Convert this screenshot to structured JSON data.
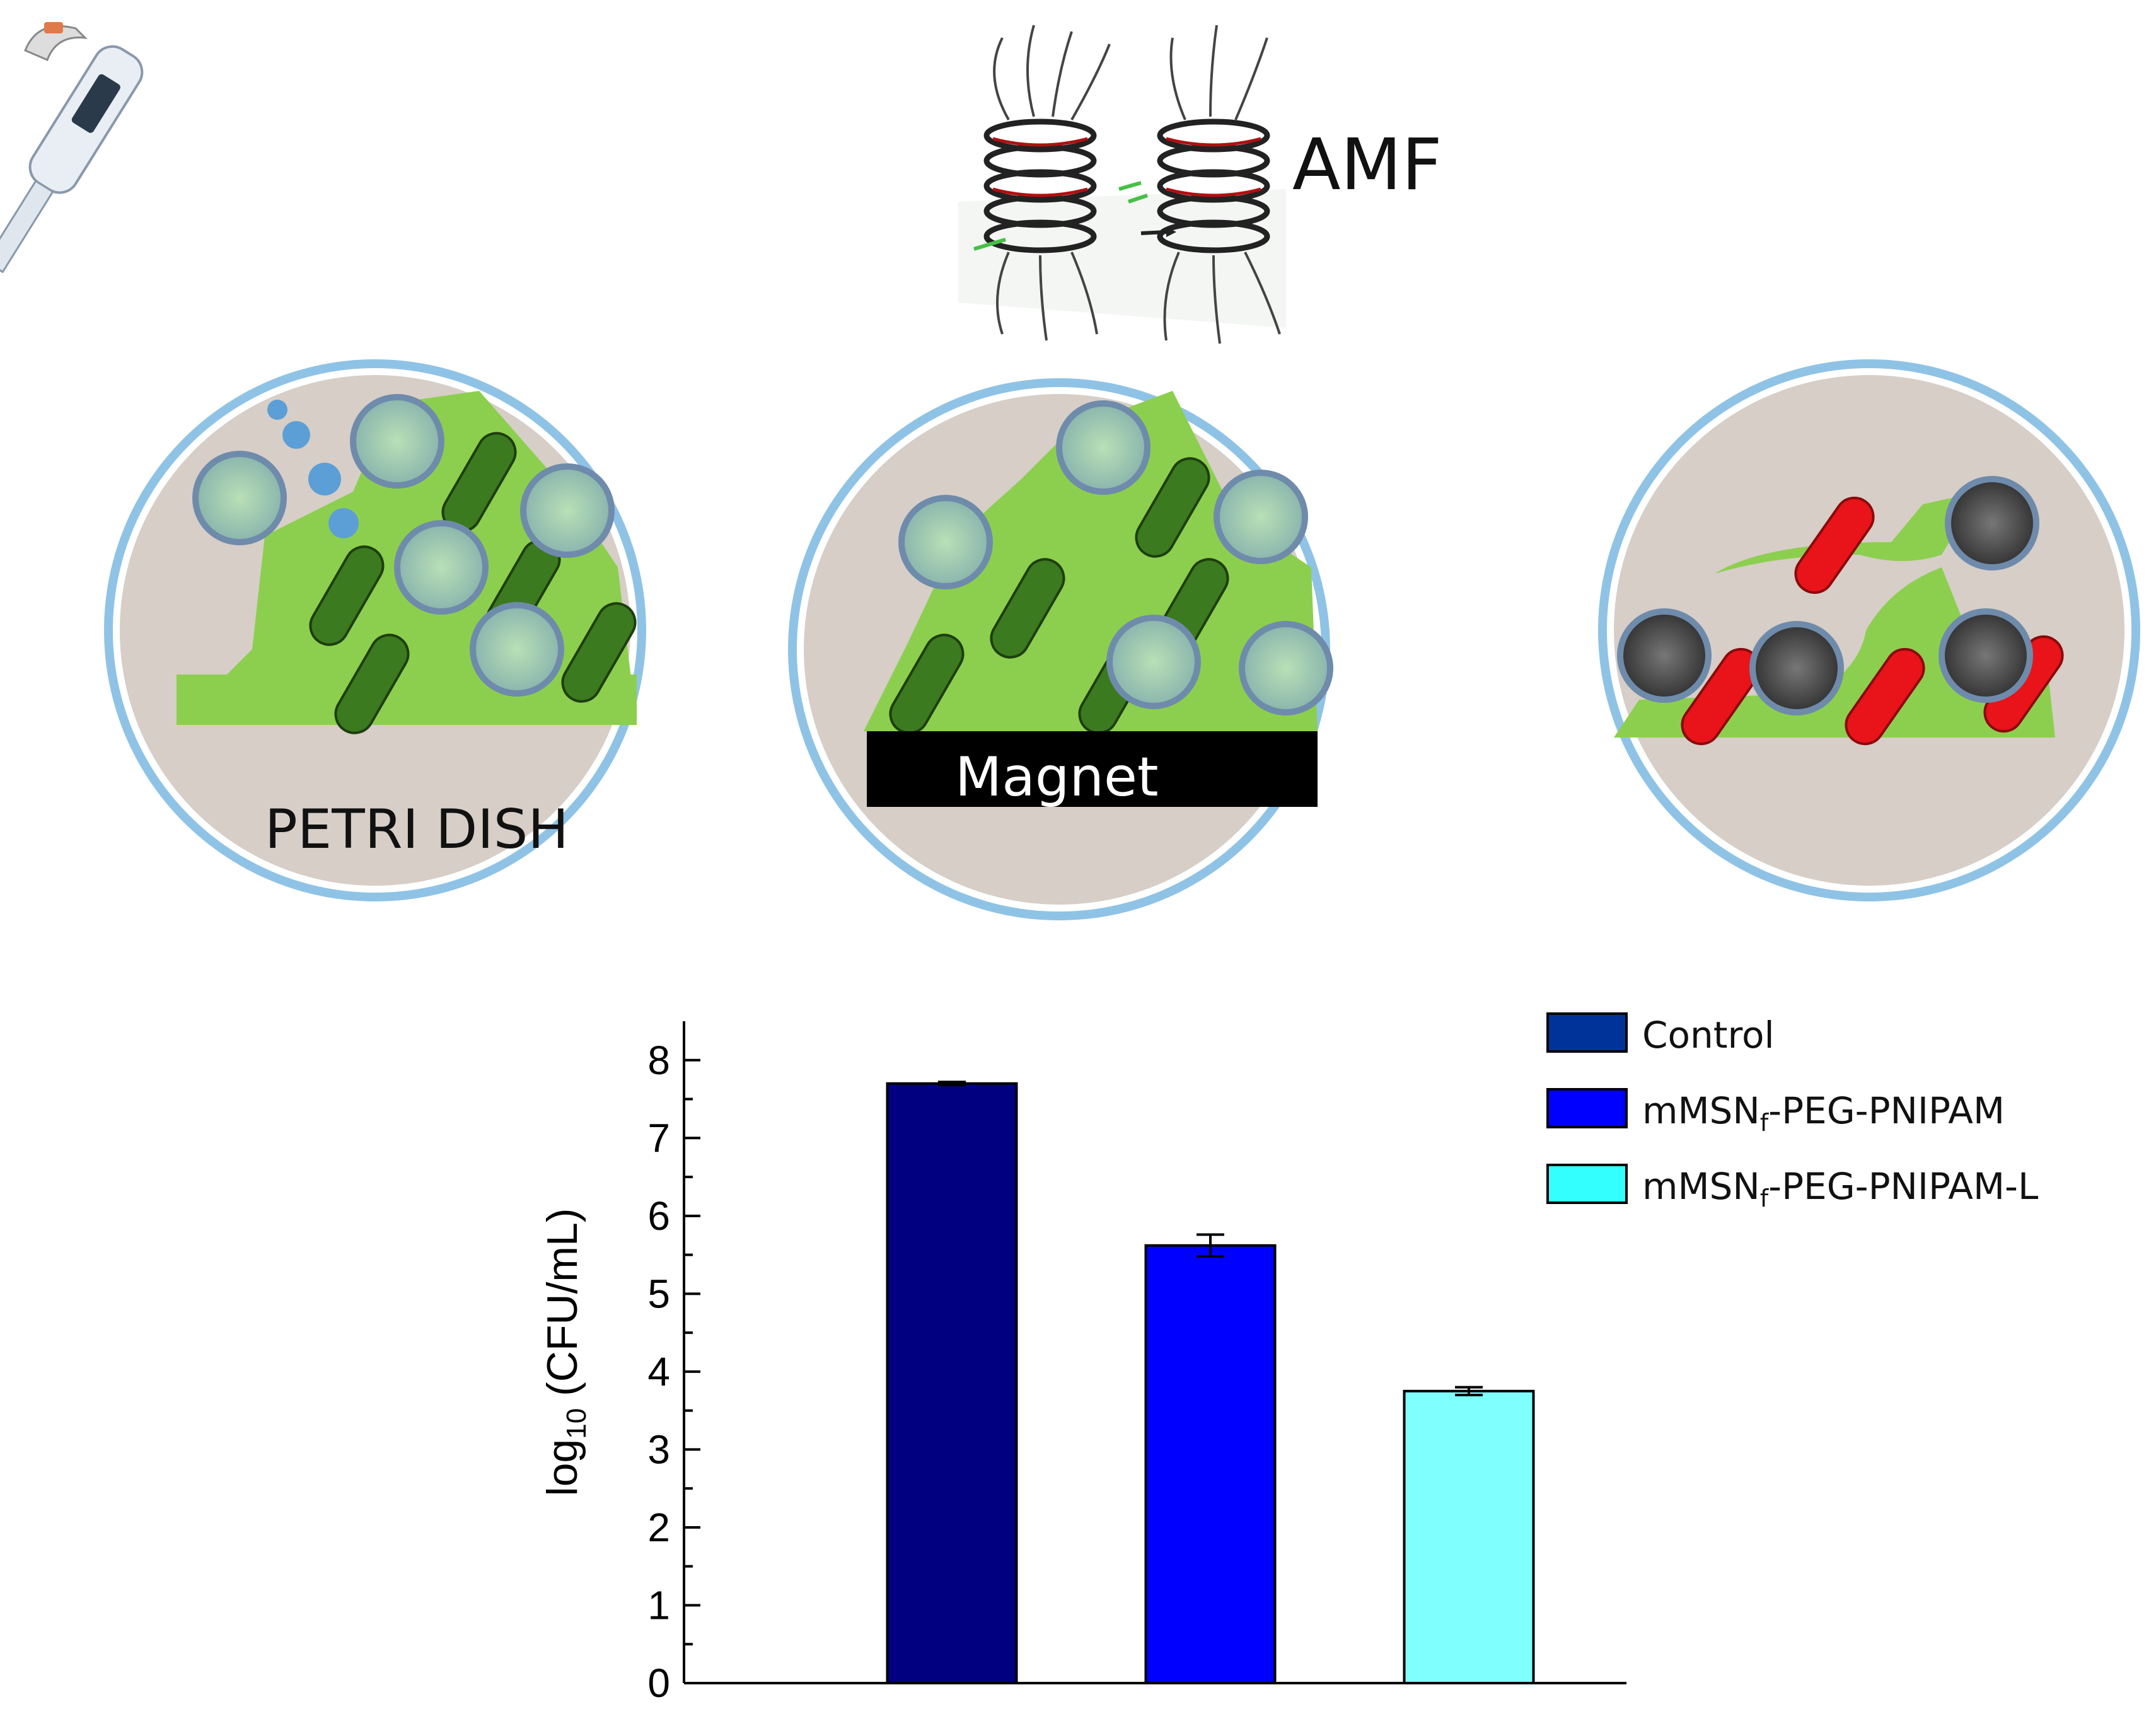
{
  "illustration": {
    "amf_label": "AMF",
    "dish1_label": "PETRI DISH",
    "magnet_label": "Magnet"
  },
  "colors": {
    "dish_fill": "#d6cec7",
    "dish_rim": "#8fc3e6",
    "biofilm": "#8ccf4e",
    "bacteria_alive": "#3b7a1e",
    "bacteria_dead": "#e8141a",
    "nanoparticle_shell": "#8aa8c8",
    "magnet": "#000000"
  },
  "chart_data": {
    "type": "bar",
    "categories": [
      "Control",
      "mMSNf-PEG-PNIPAM",
      "mMSNf-PEG-PNIPAM-L"
    ],
    "values": [
      7.7,
      5.62,
      3.75
    ],
    "errors": [
      0.02,
      0.14,
      0.05
    ],
    "colors": [
      "#000080",
      "#0000ff",
      "#80ffff"
    ],
    "ylabel_main": "log",
    "ylabel_sub": "10",
    "ylabel_rest": " (CFU/mL)",
    "ylim": [
      0,
      8.5
    ],
    "yticks": [
      "0",
      "1",
      "2",
      "3",
      "4",
      "5",
      "6",
      "7",
      "8"
    ],
    "legend": [
      {
        "main": "Control",
        "sub": "",
        "rest": ""
      },
      {
        "main": "mMSN",
        "sub": "f",
        "rest": "-PEG-PNIPAM"
      },
      {
        "main": "mMSN",
        "sub": "f",
        "rest": "-PEG-PNIPAM-L"
      }
    ],
    "legend_colors": [
      "#003399",
      "#0000ff",
      "#33ffff"
    ],
    "legend_position": "top-right"
  }
}
